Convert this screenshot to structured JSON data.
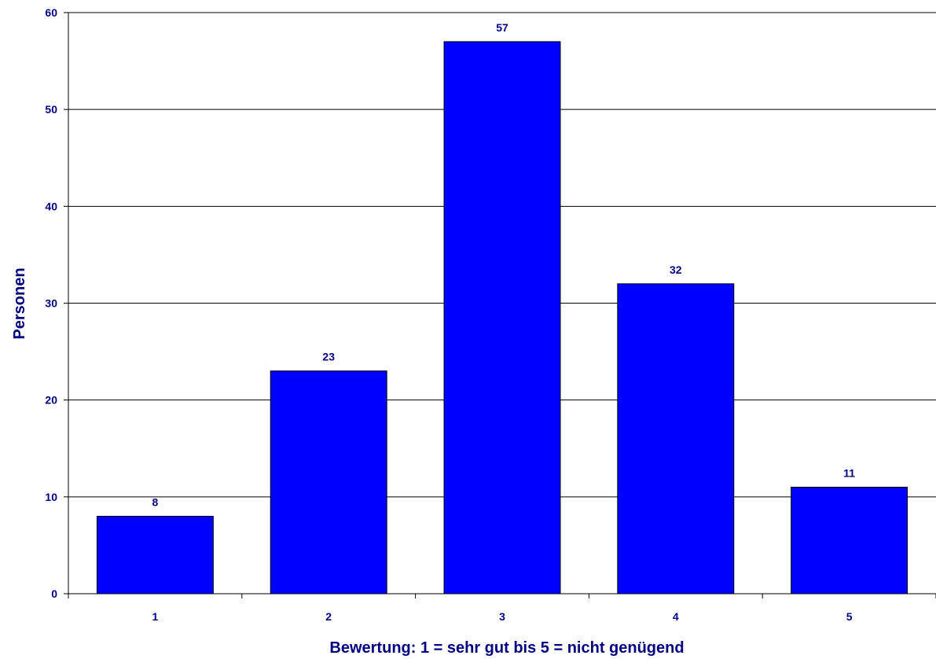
{
  "chart_data": {
    "type": "bar",
    "categories": [
      "1",
      "2",
      "3",
      "4",
      "5"
    ],
    "values": [
      8,
      23,
      57,
      32,
      11
    ],
    "data_labels": [
      "8",
      "23",
      "57",
      "32",
      "11"
    ],
    "title": "",
    "xlabel": "Bewertung: 1 = sehr gut bis 5 = nicht genügend",
    "ylabel": "Personen",
    "ylim": [
      0,
      60
    ],
    "yticks": [
      0,
      10,
      20,
      30,
      40,
      50,
      60
    ],
    "ytick_labels": [
      "0",
      "10",
      "20",
      "30",
      "40",
      "50",
      "60"
    ],
    "grid": true,
    "legend": "none"
  },
  "colors": {
    "bar_fill": "#0000ff",
    "bar_stroke": "#000000",
    "text": "#000080",
    "gridline": "#000000",
    "axis": "#000000"
  }
}
